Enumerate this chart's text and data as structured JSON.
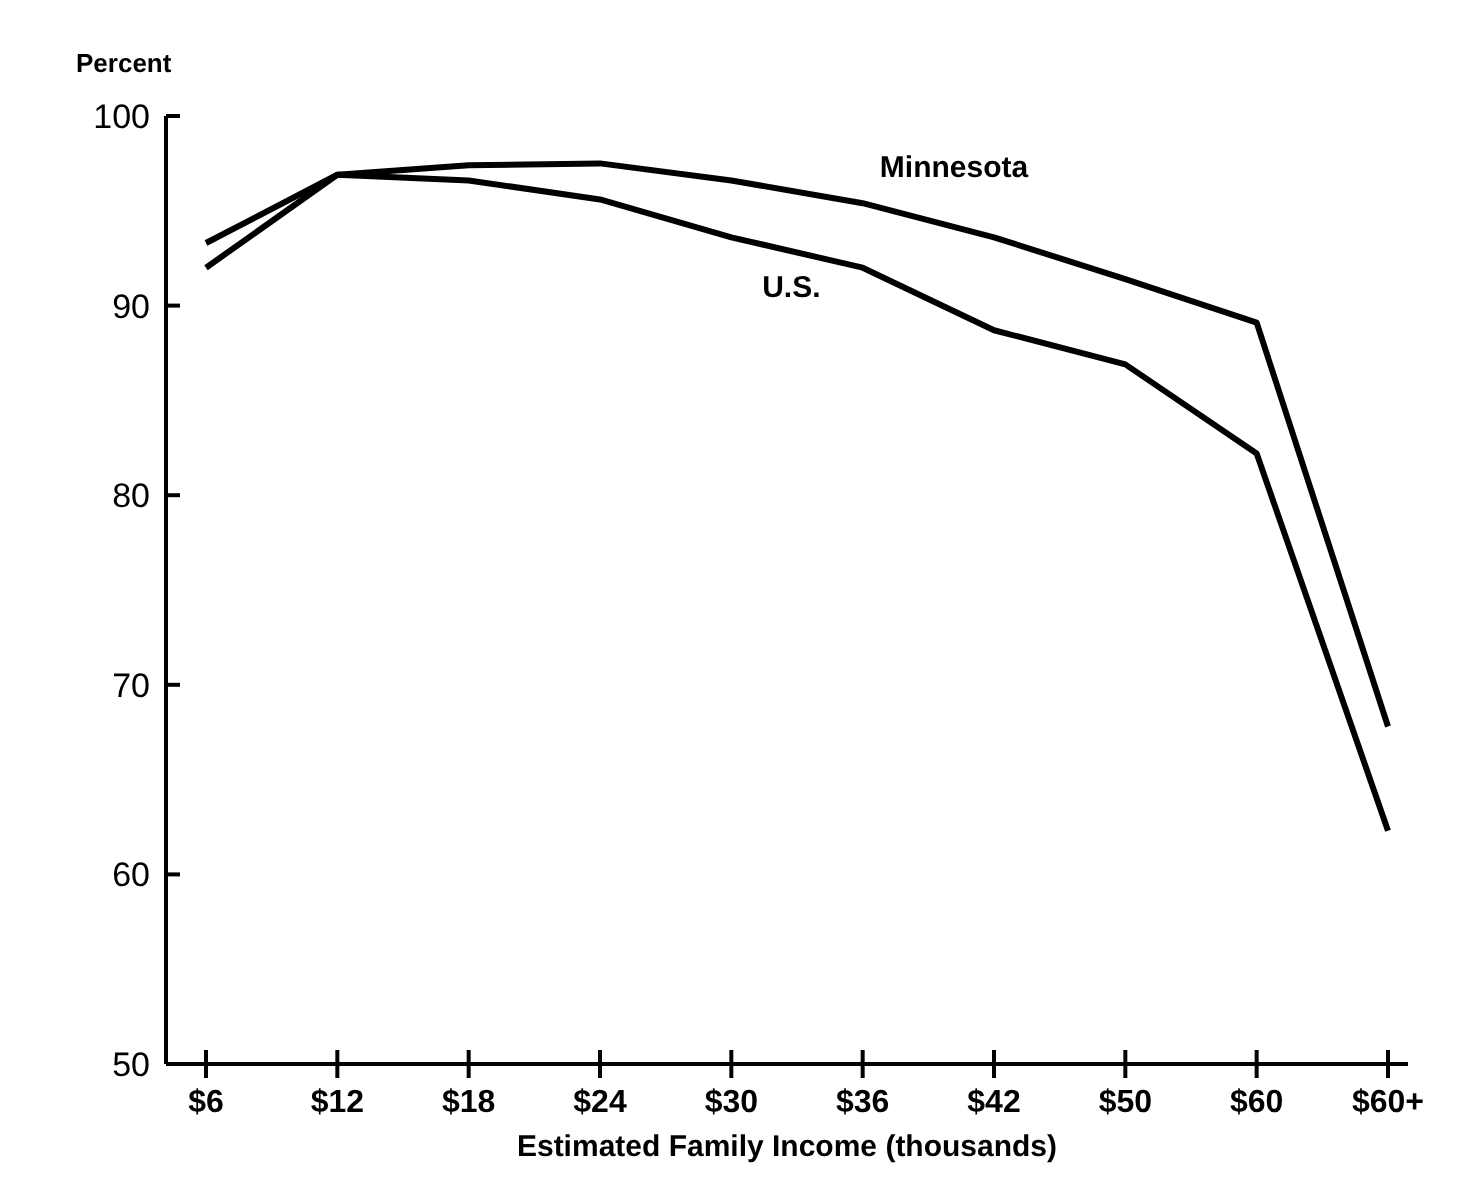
{
  "chart_data": {
    "type": "line",
    "xlabel": "Estimated Family Income (thousands)",
    "ylabel": "Percent",
    "categories": [
      "$6",
      "$12",
      "$18",
      "$24",
      "$30",
      "$36",
      "$42",
      "$50",
      "$60",
      "$60+"
    ],
    "series": [
      {
        "name": "Minnesota",
        "color": "#000000",
        "values": [
          92.0,
          96.9,
          97.4,
          97.5,
          96.6,
          95.4,
          93.6,
          91.4,
          89.1,
          67.8
        ]
      },
      {
        "name": "U.S.",
        "color": "#000000",
        "values": [
          93.3,
          96.9,
          96.6,
          95.6,
          93.6,
          92.0,
          88.7,
          86.9,
          82.2,
          62.3
        ]
      }
    ],
    "ylim": [
      50,
      100
    ],
    "yticks": [
      50,
      60,
      70,
      80,
      90,
      100
    ],
    "grid": false,
    "marker": "none",
    "line_style": "solid"
  }
}
